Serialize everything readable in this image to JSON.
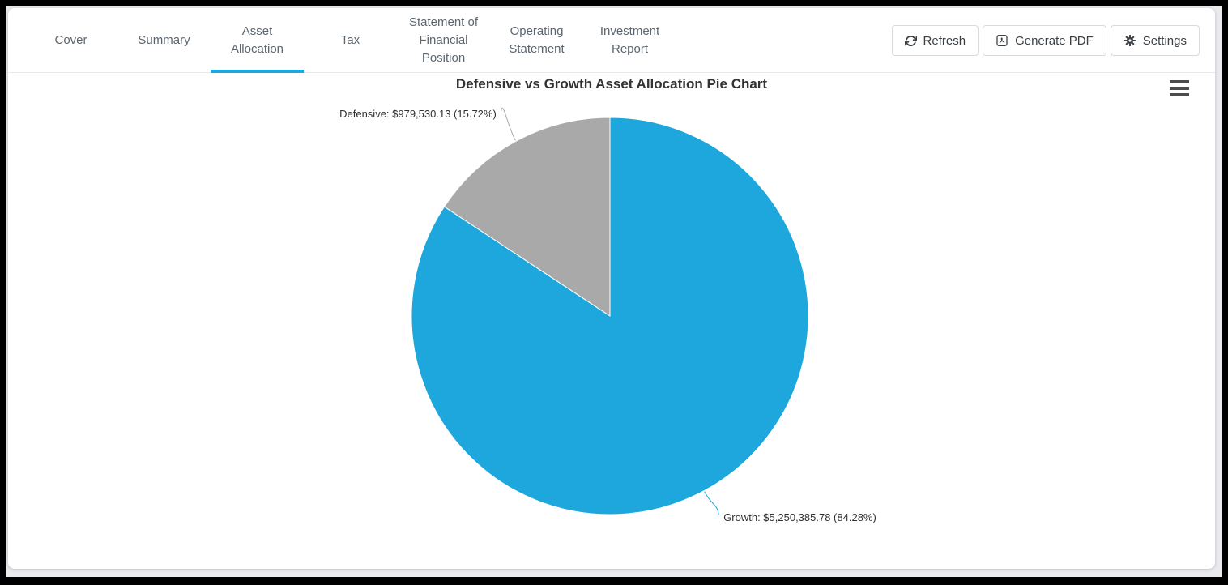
{
  "tabs": [
    "Cover",
    "Summary",
    "Asset Allocation",
    "Tax",
    "Statement of Financial Position",
    "Operating Statement",
    "Investment Report"
  ],
  "active_tab": "Asset Allocation",
  "toolbar": {
    "refresh_label": "Refresh",
    "generate_pdf_label": "Generate PDF",
    "settings_label": "Settings"
  },
  "chart_data": {
    "type": "pie",
    "title": "Defensive vs Growth Asset Allocation Pie Chart",
    "start_angle_deg": 0,
    "direction": "clockwise",
    "legend": "none",
    "slices": [
      {
        "name": "Growth",
        "value": 5250385.78,
        "pct": 84.28,
        "label": "Growth: $5,250,385.78 (84.28%)",
        "color": "#1EA7DC"
      },
      {
        "name": "Defensive",
        "value": 979530.13,
        "pct": 15.72,
        "label": "Defensive: $979,530.13 (15.72%)",
        "color": "#A9A9A9"
      }
    ],
    "label_color": "#303030",
    "slice_border_color": "#FFFFFF"
  },
  "colors": {
    "accent": "#1EA7DC",
    "tab_text": "#5C6670",
    "divider": "#E7E8EA",
    "button_border": "#D7DADE",
    "button_text": "#3B4045",
    "title_color": "#333333",
    "page_background": "#E9EAEE",
    "frame": "#000000",
    "menu_icon_color": "#4D4D4D"
  }
}
